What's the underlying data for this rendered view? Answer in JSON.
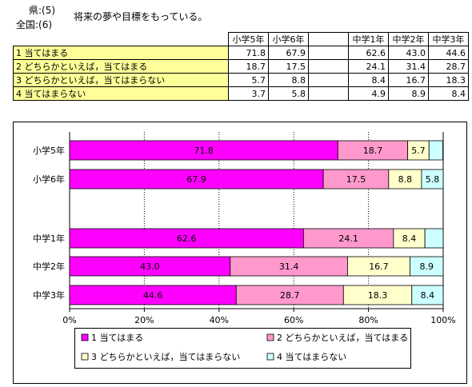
{
  "header": {
    "pref_label": "県:(5)",
    "national_label": "全国:(6)",
    "question": "将来の夢や目標をもっている。"
  },
  "table": {
    "columns": [
      "小学5年",
      "小学6年",
      "",
      "中学1年",
      "中学2年",
      "中学3年"
    ],
    "rows": [
      {
        "label": "1  当てはまる",
        "values": [
          "71.8",
          "67.9",
          "",
          "62.6",
          "43.0",
          "44.6"
        ]
      },
      {
        "label": "2  どちらかといえば，当てはまる",
        "values": [
          "18.7",
          "17.5",
          "",
          "24.1",
          "31.4",
          "28.7"
        ]
      },
      {
        "label": "3  どちらかといえば，当てはまらない",
        "values": [
          "5.7",
          "8.8",
          "",
          "8.4",
          "16.7",
          "18.3"
        ]
      },
      {
        "label": "4  当てはまらない",
        "values": [
          "3.7",
          "5.8",
          "",
          "4.9",
          "8.9",
          "8.4"
        ]
      }
    ]
  },
  "chart_data": {
    "type": "bar",
    "orientation": "horizontal",
    "stacked": true,
    "categories": [
      "小学5年",
      "小学6年",
      "中学1年",
      "中学2年",
      "中学3年"
    ],
    "series": [
      {
        "name": "1  当てはまる",
        "values": [
          71.8,
          67.9,
          62.6,
          43.0,
          44.6
        ],
        "color": "#ff00ff"
      },
      {
        "name": "2  どちらかといえば，当てはまる",
        "values": [
          18.7,
          17.5,
          24.1,
          31.4,
          28.7
        ],
        "color": "#ff99cc"
      },
      {
        "name": "3  どちらかといえば，当てはまらない",
        "values": [
          5.7,
          8.8,
          8.4,
          16.7,
          18.3
        ],
        "color": "#ffffcc"
      },
      {
        "name": "4  当てはまらない",
        "values": [
          3.7,
          5.8,
          4.9,
          8.9,
          8.4
        ],
        "color": "#ccffff"
      }
    ],
    "data_labels": [
      [
        "71.8",
        "18.7",
        "5.7",
        ""
      ],
      [
        "67.9",
        "17.5",
        "8.8",
        "5.8"
      ],
      [
        "62.6",
        "24.1",
        "8.4",
        ""
      ],
      [
        "43.0",
        "31.4",
        "16.7",
        "8.9"
      ],
      [
        "44.6",
        "28.7",
        "18.3",
        "8.4"
      ]
    ],
    "xlim": [
      0,
      100
    ],
    "xticks": [
      "0%",
      "20%",
      "40%",
      "60%",
      "80%",
      "100%"
    ],
    "grid": true,
    "legend_position": "bottom"
  }
}
